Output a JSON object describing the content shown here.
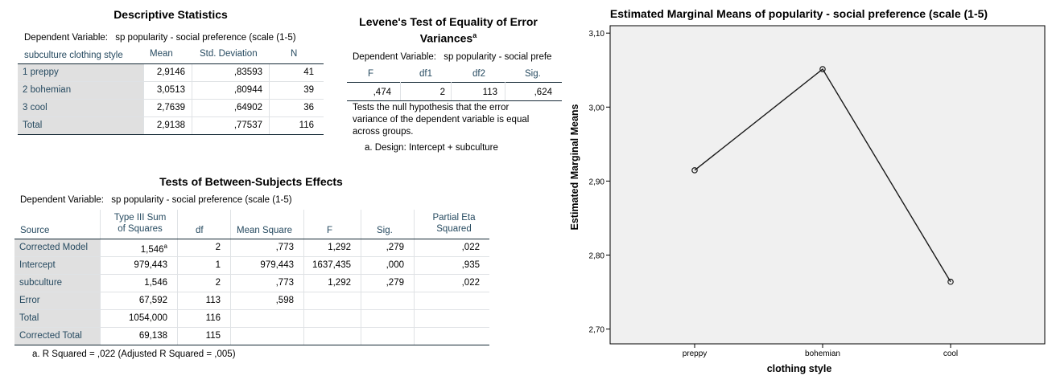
{
  "descriptive": {
    "title": "Descriptive Statistics",
    "dependent_label": "Dependent Variable:",
    "dependent_value": "sp popularity - social preference (scale (1-5)",
    "headers": [
      "subculture clothing style",
      "Mean",
      "Std. Deviation",
      "N"
    ],
    "rows": [
      [
        "1 preppy",
        "2,9146",
        ",83593",
        "41"
      ],
      [
        "2 bohemian",
        "3,0513",
        ",80944",
        "39"
      ],
      [
        "3 cool",
        "2,7639",
        ",64902",
        "36"
      ],
      [
        "Total",
        "2,9138",
        ",77537",
        "116"
      ]
    ]
  },
  "levene": {
    "title_line1": "Levene's Test of Equality of Error",
    "title_line2": "Variances",
    "title_sup": "a",
    "dependent_label": "Dependent Variable:",
    "dependent_value": "sp popularity - social prefe",
    "headers": [
      "F",
      "df1",
      "df2",
      "Sig."
    ],
    "row": [
      ",474",
      "2",
      "113",
      ",624"
    ],
    "note1": "Tests the null hypothesis that the error",
    "note2": "variance of the dependent variable is equal",
    "note3": "across groups.",
    "note4": "a. Design: Intercept + subculture"
  },
  "between": {
    "title": "Tests of Between-Subjects Effects",
    "dependent_label": "Dependent Variable:",
    "dependent_value": "sp popularity - social preference (scale (1-5)",
    "headers": {
      "source": "Source",
      "ss1": "Type III Sum",
      "ss2": "of Squares",
      "df": "df",
      "ms": "Mean Square",
      "f": "F",
      "sig": "Sig.",
      "eta1": "Partial Eta",
      "eta2": "Squared"
    },
    "rows": [
      {
        "source": "Corrected Model",
        "ss": "1,546",
        "sup": "a",
        "df": "2",
        "ms": ",773",
        "f": "1,292",
        "sig": ",279",
        "eta": ",022"
      },
      {
        "source": "Intercept",
        "ss": "979,443",
        "sup": "",
        "df": "1",
        "ms": "979,443",
        "f": "1637,435",
        "sig": ",000",
        "eta": ",935"
      },
      {
        "source": "subculture",
        "ss": "1,546",
        "sup": "",
        "df": "2",
        "ms": ",773",
        "f": "1,292",
        "sig": ",279",
        "eta": ",022"
      },
      {
        "source": "Error",
        "ss": "67,592",
        "sup": "",
        "df": "113",
        "ms": ",598",
        "f": "",
        "sig": "",
        "eta": ""
      },
      {
        "source": "Total",
        "ss": "1054,000",
        "sup": "",
        "df": "116",
        "ms": "",
        "f": "",
        "sig": "",
        "eta": ""
      },
      {
        "source": "Corrected Total",
        "ss": "69,138",
        "sup": "",
        "df": "115",
        "ms": "",
        "f": "",
        "sig": "",
        "eta": ""
      }
    ],
    "footnote": "a. R Squared = ,022 (Adjusted R Squared = ,005)"
  },
  "chart_data": {
    "type": "line",
    "title": "Estimated Marginal Means of popularity - social preference (scale (1-5)",
    "xlabel": "clothing style",
    "ylabel": "Estimated Marginal Means",
    "categories": [
      "preppy",
      "bohemian",
      "cool"
    ],
    "series": [
      {
        "values": [
          2.9146,
          3.0513,
          2.7639
        ]
      }
    ],
    "ylim": [
      2.68,
      3.11
    ],
    "yticks": [
      "2,70",
      "2,80",
      "2,90",
      "3,00",
      "3,10"
    ],
    "ytick_values": [
      2.7,
      2.8,
      2.9,
      3.0,
      3.1
    ],
    "grid": false,
    "plot_bg": "#f0f0f0",
    "line_color": "#1a1a1a"
  }
}
